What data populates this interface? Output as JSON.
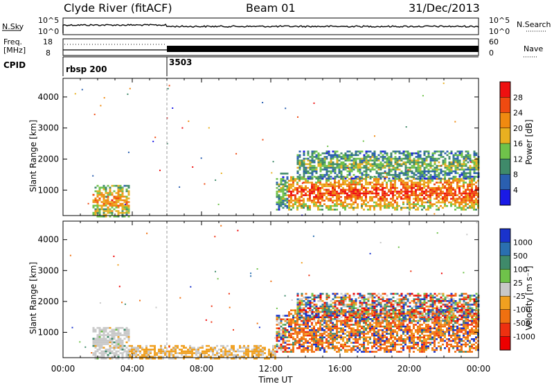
{
  "header": {
    "title": "Clyde River (fitACF)",
    "beam": "Beam 01",
    "date": "31/Dec/2013"
  },
  "status_panels": {
    "nsky_label": "N.Sky",
    "nsky_ticks": [
      "10^5",
      "10^0"
    ],
    "nsearch_label": "N.Search",
    "nsearch_ticks": [
      "10^5",
      "10^0"
    ],
    "freq_label_1": "Freq.",
    "freq_label_2": "[MHz]",
    "freq_ticks": [
      "18",
      "8"
    ],
    "nave_label": "Nave",
    "nave_ticks": [
      "60",
      "0"
    ],
    "cpid_label": "CPID",
    "cpid_segments": [
      {
        "label": "rbsp 200",
        "start_hour": 0
      },
      {
        "label": "3503",
        "start_hour": 6
      }
    ]
  },
  "chart_data": [
    {
      "type": "heatmap",
      "name": "power",
      "xlabel": "",
      "ylabel": "Slant Range [km]",
      "xlim": [
        0,
        24
      ],
      "ylim": [
        180,
        4600
      ],
      "yticks": [
        1000,
        2000,
        3000,
        4000
      ],
      "colorbar": {
        "label": "Power [dB]",
        "ticks": [
          "4",
          "8",
          "12",
          "16",
          "20",
          "24",
          "28"
        ],
        "colors": [
          "#1a1ae6",
          "#2a5fb0",
          "#3f8a6a",
          "#6fc24a",
          "#e8b020",
          "#f08a10",
          "#f04a10",
          "#ee1010"
        ]
      },
      "echo_regions": [
        {
          "t0": 1.7,
          "t1": 3.8,
          "r0": 180,
          "r1": 1200,
          "level": 0.72
        },
        {
          "t0": 12.3,
          "t1": 13.0,
          "r0": 400,
          "r1": 1600,
          "level": 0.45
        },
        {
          "t0": 13.0,
          "t1": 24.0,
          "r0": 400,
          "r1": 1500,
          "level": 0.88
        },
        {
          "t0": 13.5,
          "t1": 24.0,
          "r0": 1400,
          "r1": 2300,
          "level": 0.45
        }
      ]
    },
    {
      "type": "heatmap",
      "name": "velocity",
      "xlabel": "Time UT",
      "ylabel": "Slant Range [km]",
      "xlim": [
        0,
        24
      ],
      "ylim": [
        180,
        4600
      ],
      "xticks": [
        "00:00",
        "04:00",
        "08:00",
        "12:00",
        "16:00",
        "20:00",
        "00:00"
      ],
      "yticks": [
        1000,
        2000,
        3000,
        4000
      ],
      "colorbar": {
        "label": "Velocity [m s⁻¹]",
        "ticks": [
          "1000",
          "500",
          "100",
          "25",
          "-25",
          "-100",
          "-500",
          "-1000"
        ],
        "colors": [
          "#1a33cc",
          "#2a6fb0",
          "#3f8a6a",
          "#6fc24a",
          "#c8c8c8",
          "#f0a020",
          "#f07010",
          "#ee3010",
          "#ee0000"
        ]
      },
      "echo_regions": [
        {
          "t0": 1.7,
          "t1": 3.8,
          "r0": 180,
          "r1": 1200,
          "level": "ground-scatter"
        },
        {
          "t0": 3.8,
          "t1": 12.3,
          "r0": 180,
          "r1": 600,
          "level": "low"
        },
        {
          "t0": 12.3,
          "t1": 13.0,
          "r0": 400,
          "r1": 1600,
          "level": "mixed"
        },
        {
          "t0": 13.0,
          "t1": 24.0,
          "r0": 400,
          "r1": 1800,
          "level": "negative"
        },
        {
          "t0": 13.5,
          "t1": 24.0,
          "r0": 1400,
          "r1": 2300,
          "level": "mixed"
        }
      ]
    }
  ]
}
